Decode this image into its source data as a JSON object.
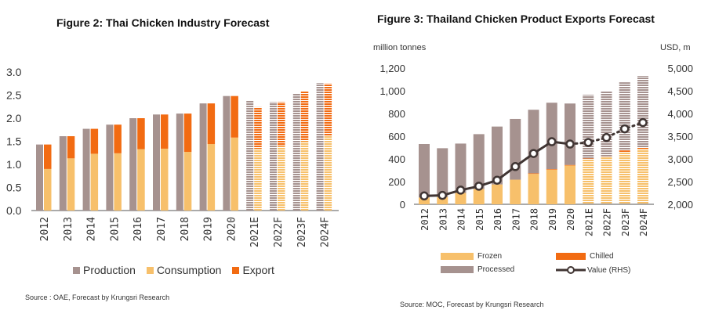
{
  "chart_data": [
    {
      "type": "bar",
      "title": "Figure 2: Thai Chicken Industry Forecast",
      "categories": [
        "2012",
        "2013",
        "2014",
        "2015",
        "2016",
        "2017",
        "2018",
        "2019",
        "2020",
        "2021E",
        "2022F",
        "2023F",
        "2024F"
      ],
      "forecast_from": "2021E",
      "yticks": [
        "0.0",
        "0.5",
        "1.0",
        "1.5",
        "2.0",
        "2.5",
        "3.0"
      ],
      "ylim": [
        0,
        3.0
      ],
      "series": [
        {
          "name": "Production",
          "color": "#a6928f",
          "values": [
            1.43,
            1.61,
            1.77,
            1.86,
            2.0,
            2.08,
            2.1,
            2.32,
            2.48,
            2.38,
            2.35,
            2.54,
            2.76
          ]
        },
        {
          "name": "Consumption",
          "color": "#f7c06b",
          "values": [
            0.9,
            1.13,
            1.23,
            1.24,
            1.33,
            1.34,
            1.27,
            1.44,
            1.58,
            1.34,
            1.39,
            1.5,
            1.62
          ]
        },
        {
          "name": "Export",
          "color": "#f26b12",
          "values": [
            0.53,
            0.48,
            0.54,
            0.62,
            0.67,
            0.74,
            0.83,
            0.88,
            0.9,
            0.9,
            0.96,
            1.09,
            1.13
          ]
        }
      ],
      "legend": "bottom",
      "source": "Source : OAE, Forecast by Krungsri Research"
    },
    {
      "type": "bar",
      "title": "Figure 3: Thailand Chicken Product Exports Forecast",
      "ylabel": "million tonnes",
      "y2label": "USD, m",
      "categories": [
        "2012",
        "2013",
        "2014",
        "2015",
        "2016",
        "2017",
        "2018",
        "2019",
        "2020",
        "2021E",
        "2022F",
        "2023F",
        "2024F"
      ],
      "forecast_from": "2021E",
      "yticks": [
        "0",
        "200",
        "400",
        "600",
        "800",
        "1,000",
        "1,200"
      ],
      "ylim": [
        0,
        1200
      ],
      "y2ticks": [
        "2,000",
        "2,500",
        "3,000",
        "3,500",
        "4,000",
        "4,500",
        "5,000"
      ],
      "y2lim": [
        2000,
        5000
      ],
      "series": [
        {
          "name": "Frozen",
          "color": "#f7c06b",
          "values": [
            60,
            65,
            100,
            135,
            175,
            217,
            268,
            305,
            342,
            397,
            415,
            455,
            489
          ]
        },
        {
          "name": "Chilled",
          "color": "#f26b12",
          "values": [
            0,
            0,
            0,
            0,
            0,
            0,
            5,
            5,
            5,
            7,
            8,
            20,
            10
          ]
        },
        {
          "name": "Processed",
          "color": "#a6928f",
          "values": [
            471,
            429,
            435,
            483,
            510,
            535,
            560,
            585,
            541,
            561,
            574,
            600,
            632
          ]
        },
        {
          "name": "Value (RHS)",
          "type": "line",
          "color": "#403533",
          "values": [
            2185,
            2196,
            2312,
            2398,
            2531,
            2831,
            3119,
            3379,
            3327,
            3362,
            3471,
            3662,
            3800
          ]
        }
      ],
      "legend": "bottom",
      "source": "Source: MOC, Forecast by Krungsri Research"
    }
  ]
}
